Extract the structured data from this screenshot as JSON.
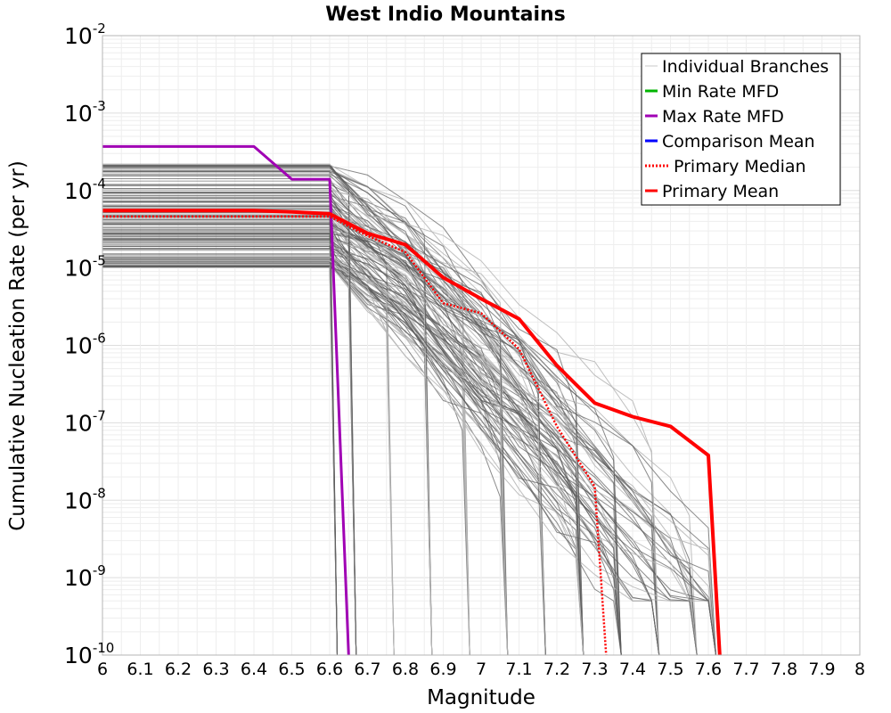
{
  "chart_data": {
    "type": "line",
    "title": "West Indio Mountains",
    "xlabel": "Magnitude",
    "ylabel": "Cumulative Nucleation Rate (per yr)",
    "yscale": "log",
    "xlim": [
      6,
      8
    ],
    "ylim_exp": [
      -10,
      -2
    ],
    "x_ticks": [
      "6",
      "6.1",
      "6.2",
      "6.3",
      "6.4",
      "6.5",
      "6.6",
      "6.7",
      "6.8",
      "6.9",
      "7",
      "7.1",
      "7.2",
      "7.3",
      "7.4",
      "7.5",
      "7.6",
      "7.7",
      "7.8",
      "7.9",
      "8"
    ],
    "y_ticks": [
      {
        "base": "10",
        "exp": "-2"
      },
      {
        "base": "10",
        "exp": "-3"
      },
      {
        "base": "10",
        "exp": "-4"
      },
      {
        "base": "10",
        "exp": "-5"
      },
      {
        "base": "10",
        "exp": "-6"
      },
      {
        "base": "10",
        "exp": "-7"
      },
      {
        "base": "10",
        "exp": "-8"
      },
      {
        "base": "10",
        "exp": "-9"
      },
      {
        "base": "10",
        "exp": "-10"
      }
    ],
    "legend": [
      {
        "label": "Individual Branches",
        "color": "#c8c8c8",
        "style": "solid"
      },
      {
        "label": "Min Rate MFD",
        "color": "#00b400",
        "style": "solid"
      },
      {
        "label": "Max Rate MFD",
        "color": "#a000b4",
        "style": "solid"
      },
      {
        "label": "Comparison Mean",
        "color": "#0000ff",
        "style": "solid"
      },
      {
        "label": "Primary Median",
        "color": "#ff0000",
        "style": "dotted"
      },
      {
        "label": "Primary Mean",
        "color": "#ff0000",
        "style": "solid"
      }
    ],
    "series": [
      {
        "name": "Max Rate MFD",
        "color": "#a000b4",
        "x": [
          6.0,
          6.1,
          6.2,
          6.3,
          6.4,
          6.5,
          6.6,
          6.65
        ],
        "y": [
          0.00037,
          0.00037,
          0.00037,
          0.00037,
          0.00037,
          0.00014,
          0.00014,
          1e-10
        ]
      },
      {
        "name": "Primary Mean",
        "color": "#ff0000",
        "x": [
          6.0,
          6.1,
          6.2,
          6.3,
          6.4,
          6.5,
          6.6,
          6.7,
          6.8,
          6.9,
          7.0,
          7.1,
          7.2,
          7.3,
          7.4,
          7.5,
          7.6,
          7.63
        ],
        "y": [
          5.5e-05,
          5.5e-05,
          5.5e-05,
          5.5e-05,
          5.5e-05,
          5.3e-05,
          5e-05,
          2.8e-05,
          2e-05,
          7.5e-06,
          4e-06,
          2.2e-06,
          5.5e-07,
          1.8e-07,
          1.2e-07,
          9e-08,
          3.8e-08,
          1e-10
        ]
      },
      {
        "name": "Primary Median",
        "color": "#ff0000",
        "x": [
          6.0,
          6.1,
          6.2,
          6.3,
          6.4,
          6.5,
          6.6,
          6.7,
          6.8,
          6.9,
          7.0,
          7.1,
          7.2,
          7.3,
          7.33
        ],
        "y": [
          4.6e-05,
          4.6e-05,
          4.6e-05,
          4.6e-05,
          4.6e-05,
          4.6e-05,
          4.6e-05,
          2.6e-05,
          1.6e-05,
          3.5e-06,
          2.6e-06,
          9e-07,
          9e-08,
          1.5e-08,
          1e-10
        ]
      }
    ]
  }
}
